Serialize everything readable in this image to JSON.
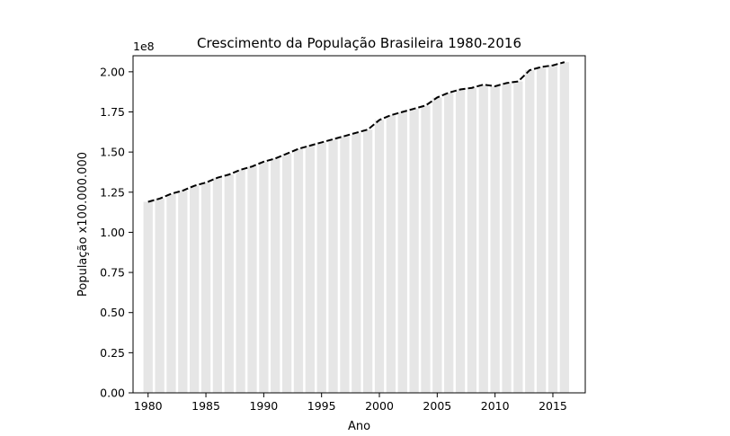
{
  "chart_data": {
    "type": "bar",
    "title": "Crescimento da População Brasileira 1980-2016",
    "xlabel": "Ano",
    "ylabel": "População x100.000.000",
    "y_offset_text": "1e8",
    "xlim": [
      1978.7,
      2017.8
    ],
    "ylim": [
      0,
      2.1
    ],
    "x_ticks": [
      1980,
      1985,
      1990,
      1995,
      2000,
      2005,
      2010,
      2015
    ],
    "y_ticks": [
      "0.00",
      "0.25",
      "0.50",
      "0.75",
      "1.00",
      "1.25",
      "1.50",
      "1.75",
      "2.00"
    ],
    "grid": false,
    "colors": {
      "bars": "#e6e6e6",
      "line": "#000000"
    },
    "line_style": "dashed",
    "x": [
      1980,
      1981,
      1982,
      1983,
      1984,
      1985,
      1986,
      1987,
      1988,
      1989,
      1990,
      1991,
      1992,
      1993,
      1994,
      1995,
      1996,
      1997,
      1998,
      1999,
      2000,
      2001,
      2002,
      2003,
      2004,
      2005,
      2006,
      2007,
      2008,
      2009,
      2010,
      2011,
      2012,
      2013,
      2014,
      2015,
      2016
    ],
    "values": [
      1.19,
      1.21,
      1.24,
      1.26,
      1.29,
      1.31,
      1.34,
      1.36,
      1.39,
      1.41,
      1.44,
      1.46,
      1.49,
      1.52,
      1.54,
      1.56,
      1.58,
      1.6,
      1.62,
      1.64,
      1.7,
      1.73,
      1.75,
      1.77,
      1.79,
      1.84,
      1.87,
      1.89,
      1.9,
      1.92,
      1.91,
      1.93,
      1.94,
      2.01,
      2.03,
      2.04,
      2.06
    ]
  }
}
